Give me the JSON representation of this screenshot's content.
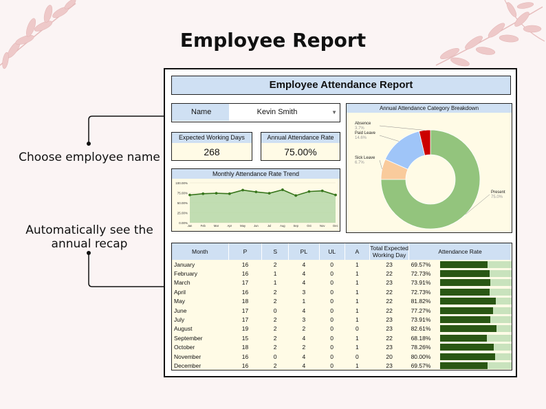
{
  "page": {
    "title": "Employee Report",
    "callout_choose": "Choose employee name",
    "callout_recap": "Automatically see the annual recap"
  },
  "report": {
    "header": "Employee Attendance Report",
    "name_label": "Name",
    "employee_name": "Kevin Smith",
    "kpi_working_label": "Expected Working Days",
    "kpi_working_value": "268",
    "kpi_rate_label": "Annual Attendance Rate",
    "kpi_rate_value": "75.00%"
  },
  "colors": {
    "header_blue": "#cfe0f3",
    "panel_cream": "#fffbe6",
    "present": "#93c47d",
    "sick_leave": "#f9cb9c",
    "paid_leave": "#9fc5f8",
    "absence": "#cc0000",
    "bar_fill": "#2a5714",
    "bar_track": "#c9e3bd",
    "trend_line": "#38761d",
    "trend_area": "#b6d7a8"
  },
  "chart_data": [
    {
      "type": "area",
      "title": "Monthly Attendance Rate Trend",
      "x": [
        "Jan",
        "Feb",
        "Mar",
        "Apr",
        "May",
        "Jun",
        "Jul",
        "Aug",
        "Sep",
        "Oct",
        "Nov",
        "Dec"
      ],
      "y_ticks": [
        "0.00%",
        "25.00%",
        "50.00%",
        "75.00%",
        "100.00%"
      ],
      "ylim": [
        0,
        100
      ],
      "series": [
        {
          "values": [
            69.57,
            72.73,
            73.91,
            72.73,
            81.82,
            77.27,
            73.91,
            82.61,
            68.18,
            78.26,
            80.0,
            69.57
          ]
        }
      ]
    },
    {
      "type": "pie",
      "title": "Annual Attendance Category Breakdown",
      "donut": true,
      "slices": [
        {
          "name": "Present",
          "percent": "75.0%",
          "value": 75.0,
          "color_key": "present"
        },
        {
          "name": "Sick Leave",
          "percent": "6.7%",
          "value": 6.7,
          "color_key": "sick_leave"
        },
        {
          "name": "Paid Leave",
          "percent": "14.6%",
          "value": 14.6,
          "color_key": "paid_leave"
        },
        {
          "name": "Absence",
          "percent": "3.7%",
          "value": 3.7,
          "color_key": "absence"
        }
      ]
    },
    {
      "type": "table",
      "columns": [
        "Month",
        "P",
        "S",
        "PL",
        "UL",
        "A",
        "Total Expected Working Day",
        "Attendance Rate"
      ],
      "rows": [
        {
          "month": "January",
          "p": "16",
          "s": "2",
          "pl": "4",
          "ul": "0",
          "a": "1",
          "total": "23",
          "rate": "69.57%",
          "rate_value": 69.57
        },
        {
          "month": "February",
          "p": "16",
          "s": "1",
          "pl": "4",
          "ul": "0",
          "a": "1",
          "total": "22",
          "rate": "72.73%",
          "rate_value": 72.73
        },
        {
          "month": "March",
          "p": "17",
          "s": "1",
          "pl": "4",
          "ul": "0",
          "a": "1",
          "total": "23",
          "rate": "73.91%",
          "rate_value": 73.91
        },
        {
          "month": "April",
          "p": "16",
          "s": "2",
          "pl": "3",
          "ul": "0",
          "a": "1",
          "total": "22",
          "rate": "72.73%",
          "rate_value": 72.73
        },
        {
          "month": "May",
          "p": "18",
          "s": "2",
          "pl": "1",
          "ul": "0",
          "a": "1",
          "total": "22",
          "rate": "81.82%",
          "rate_value": 81.82
        },
        {
          "month": "June",
          "p": "17",
          "s": "0",
          "pl": "4",
          "ul": "0",
          "a": "1",
          "total": "22",
          "rate": "77.27%",
          "rate_value": 77.27
        },
        {
          "month": "July",
          "p": "17",
          "s": "2",
          "pl": "3",
          "ul": "0",
          "a": "1",
          "total": "23",
          "rate": "73.91%",
          "rate_value": 73.91
        },
        {
          "month": "August",
          "p": "19",
          "s": "2",
          "pl": "2",
          "ul": "0",
          "a": "0",
          "total": "23",
          "rate": "82.61%",
          "rate_value": 82.61
        },
        {
          "month": "September",
          "p": "15",
          "s": "2",
          "pl": "4",
          "ul": "0",
          "a": "1",
          "total": "22",
          "rate": "68.18%",
          "rate_value": 68.18
        },
        {
          "month": "October",
          "p": "18",
          "s": "2",
          "pl": "2",
          "ul": "0",
          "a": "1",
          "total": "23",
          "rate": "78.26%",
          "rate_value": 78.26
        },
        {
          "month": "November",
          "p": "16",
          "s": "0",
          "pl": "4",
          "ul": "0",
          "a": "0",
          "total": "20",
          "rate": "80.00%",
          "rate_value": 80.0
        },
        {
          "month": "December",
          "p": "16",
          "s": "2",
          "pl": "4",
          "ul": "0",
          "a": "1",
          "total": "23",
          "rate": "69.57%",
          "rate_value": 69.57
        }
      ]
    }
  ]
}
